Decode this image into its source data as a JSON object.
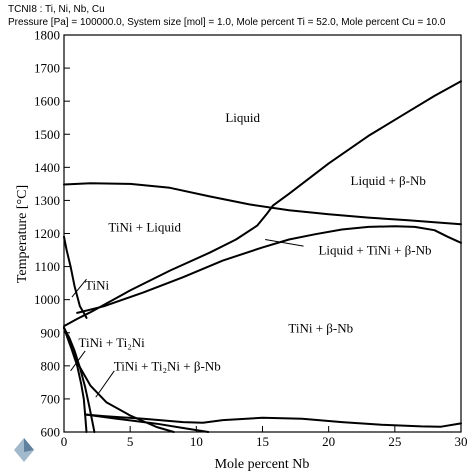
{
  "header": {
    "line1": "TCNI8 : Ti, Ni, Nb, Cu",
    "line2": "Pressure [Pa] = 100000.0, System size [mol] = 1.0, Mole percent Ti = 52.0, Mole percent Cu = 10.0"
  },
  "chart_data": {
    "type": "line",
    "title": "",
    "xlabel": "Mole percent Nb",
    "ylabel": "Temperature [°C]",
    "xlim": [
      0,
      30
    ],
    "ylim": [
      600,
      1800
    ],
    "xticks": [
      0,
      5,
      10,
      15,
      20,
      25,
      30
    ],
    "yticks": [
      600,
      700,
      800,
      900,
      1000,
      1100,
      1200,
      1300,
      1400,
      1500,
      1600,
      1700,
      1800
    ],
    "grid": false,
    "series": [
      {
        "points": [
          [
            0,
            1348
          ],
          [
            2,
            1352
          ],
          [
            5,
            1350
          ],
          [
            8,
            1338
          ],
          [
            11,
            1312
          ],
          [
            14,
            1288
          ],
          [
            17,
            1270
          ],
          [
            20,
            1258
          ],
          [
            23,
            1248
          ],
          [
            26,
            1240
          ],
          [
            28,
            1234
          ],
          [
            30,
            1228
          ]
        ]
      },
      {
        "points": [
          [
            0,
            920
          ],
          [
            1,
            942
          ],
          [
            2,
            962
          ],
          [
            3,
            984
          ],
          [
            5,
            1028
          ],
          [
            8,
            1088
          ],
          [
            11,
            1142
          ],
          [
            13,
            1182
          ],
          [
            14.6,
            1224
          ],
          [
            15.3,
            1258
          ],
          [
            15.8,
            1285
          ],
          [
            17,
            1320
          ],
          [
            20,
            1412
          ],
          [
            23,
            1495
          ],
          [
            26,
            1568
          ],
          [
            28,
            1616
          ],
          [
            30,
            1660
          ]
        ]
      },
      {
        "points": [
          [
            1,
            960
          ],
          [
            3,
            980
          ],
          [
            6,
            1022
          ],
          [
            9,
            1068
          ],
          [
            12,
            1118
          ],
          [
            15,
            1158
          ],
          [
            17,
            1182
          ],
          [
            19,
            1198
          ],
          [
            21,
            1212
          ],
          [
            23,
            1220
          ],
          [
            25,
            1222
          ],
          [
            26.5,
            1220
          ],
          [
            28,
            1210
          ],
          [
            29,
            1190
          ],
          [
            30,
            1172
          ]
        ]
      },
      {
        "points": [
          [
            0,
            1190
          ],
          [
            0.2,
            1150
          ],
          [
            0.5,
            1100
          ],
          [
            0.8,
            1040
          ],
          [
            1.2,
            980
          ],
          [
            1.5,
            960
          ],
          [
            1.7,
            945
          ]
        ]
      },
      {
        "points": [
          [
            0,
            915
          ],
          [
            0.4,
            885
          ],
          [
            0.8,
            845
          ],
          [
            1.2,
            795
          ],
          [
            1.6,
            735
          ],
          [
            1.9,
            680
          ],
          [
            2.1,
            640
          ],
          [
            2.3,
            600
          ]
        ]
      },
      {
        "points": [
          [
            0,
            915
          ],
          [
            0.4,
            870
          ],
          [
            1,
            810
          ],
          [
            2,
            740
          ],
          [
            3.2,
            690
          ],
          [
            5,
            650
          ],
          [
            7,
            615
          ],
          [
            8.3,
            600
          ]
        ]
      },
      {
        "points": [
          [
            0,
            915
          ],
          [
            0.5,
            860
          ],
          [
            1,
            800
          ],
          [
            1.3,
            745
          ],
          [
            1.5,
            700
          ],
          [
            1.6,
            650
          ],
          [
            1.7,
            600
          ]
        ]
      },
      {
        "points": [
          [
            1.6,
            653
          ],
          [
            3,
            648
          ],
          [
            6,
            640
          ],
          [
            9,
            630
          ],
          [
            10.5,
            628
          ],
          [
            12,
            636
          ],
          [
            15,
            643
          ],
          [
            18,
            640
          ],
          [
            21,
            630
          ],
          [
            24,
            622
          ],
          [
            27,
            617
          ],
          [
            28.5,
            616
          ],
          [
            30,
            626
          ]
        ]
      },
      {
        "points": [
          [
            1.6,
            653
          ],
          [
            4,
            640
          ],
          [
            7,
            625
          ],
          [
            9,
            612
          ],
          [
            10.9,
            600
          ]
        ]
      }
    ],
    "labels": [
      {
        "text": "Liquid",
        "x": 13.5,
        "y": 1550
      },
      {
        "text": "Liquid + β-Nb",
        "x": 24.5,
        "y": 1360
      },
      {
        "text": "TiNi + Liquid",
        "x": 6.1,
        "y": 1220
      },
      {
        "text": "Liquid + TiNi + β-Nb",
        "x": 23.5,
        "y": 1150
      },
      {
        "text": "TiNi",
        "x": 2.5,
        "y": 1045
      },
      {
        "text": "TiNi + β-Nb",
        "x": 19.4,
        "y": 915
      },
      {
        "text": "TiNi + Ti₂Ni",
        "x": 3.6,
        "y": 870
      },
      {
        "text": "TiNi + Ti₂Ni + β-Nb",
        "x": 7.8,
        "y": 800
      }
    ],
    "leaders": [
      [
        [
          18.1,
          1162
        ],
        [
          15.2,
          1182
        ]
      ],
      [
        [
          1.7,
          1062
        ],
        [
          0.6,
          1008
        ]
      ],
      [
        [
          1.6,
          845
        ],
        [
          0.5,
          785
        ]
      ],
      [
        [
          3.8,
          785
        ],
        [
          2.4,
          705
        ]
      ]
    ]
  },
  "logo": {
    "name": "logo-icon",
    "color": "#7a9bb5"
  }
}
